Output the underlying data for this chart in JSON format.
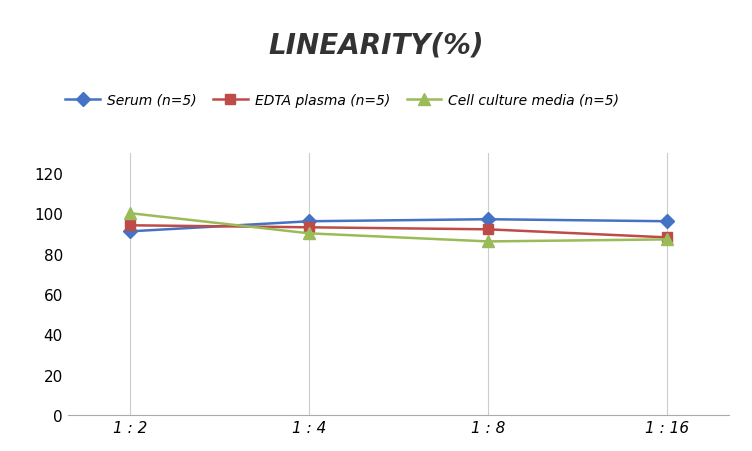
{
  "title": "LINEARITY(%)",
  "x_labels": [
    "1 : 2",
    "1 : 4",
    "1 : 8",
    "1 : 16"
  ],
  "x_positions": [
    0,
    1,
    2,
    3
  ],
  "series": [
    {
      "name": "Serum (n=5)",
      "values": [
        91,
        96,
        97,
        96
      ],
      "color": "#4472C4",
      "marker": "D",
      "markersize": 7,
      "linewidth": 1.8
    },
    {
      "name": "EDTA plasma (n=5)",
      "values": [
        94,
        93,
        92,
        88
      ],
      "color": "#BE4B48",
      "marker": "s",
      "markersize": 7,
      "linewidth": 1.8
    },
    {
      "name": "Cell culture media (n=5)",
      "values": [
        100,
        90,
        86,
        87
      ],
      "color": "#9BBB59",
      "marker": "^",
      "markersize": 8,
      "linewidth": 1.8
    }
  ],
  "ylim": [
    0,
    130
  ],
  "yticks": [
    0,
    20,
    40,
    60,
    80,
    100,
    120
  ],
  "title_fontsize": 20,
  "legend_fontsize": 10,
  "tick_fontsize": 11,
  "background_color": "#ffffff",
  "grid_color": "#cccccc"
}
